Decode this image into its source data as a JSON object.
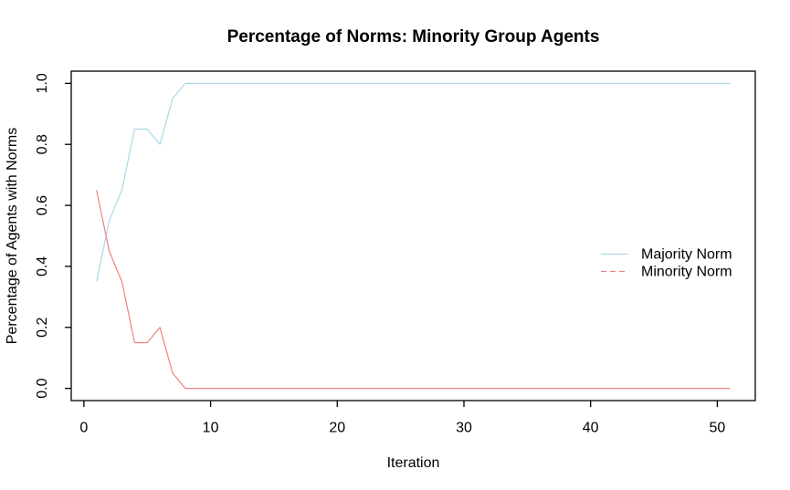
{
  "chart_data": {
    "type": "line",
    "title": "Percentage of Norms: Minority Group Agents",
    "xlabel": "Iteration",
    "ylabel": "Percentage of Agents with Norms",
    "grid": false,
    "legend_position": "right-middle",
    "xlim": [
      -1,
      53
    ],
    "ylim": [
      -0.04,
      1.04
    ],
    "xticks": [
      0,
      10,
      20,
      30,
      40,
      50
    ],
    "yticks": [
      0.0,
      0.2,
      0.4,
      0.6,
      0.8,
      1.0
    ],
    "ytick_labels": [
      "0.0",
      "0.2",
      "0.4",
      "0.6",
      "0.8",
      "1.0"
    ],
    "x": [
      1,
      2,
      3,
      4,
      5,
      6,
      7,
      8,
      9,
      10,
      11,
      12,
      13,
      14,
      15,
      16,
      17,
      18,
      19,
      20,
      21,
      22,
      23,
      24,
      25,
      26,
      27,
      28,
      29,
      30,
      31,
      32,
      33,
      34,
      35,
      36,
      37,
      38,
      39,
      40,
      41,
      42,
      43,
      44,
      45,
      46,
      47,
      48,
      49,
      50,
      51
    ],
    "series": [
      {
        "name": "Majority Norm",
        "color": "#ADD8E6",
        "line_style": "solid",
        "legend_style": "solid",
        "values": [
          0.35,
          0.55,
          0.65,
          0.85,
          0.85,
          0.8,
          0.95,
          1.0,
          1.0,
          1.0,
          1.0,
          1.0,
          1.0,
          1.0,
          1.0,
          1.0,
          1.0,
          1.0,
          1.0,
          1.0,
          1.0,
          1.0,
          1.0,
          1.0,
          1.0,
          1.0,
          1.0,
          1.0,
          1.0,
          1.0,
          1.0,
          1.0,
          1.0,
          1.0,
          1.0,
          1.0,
          1.0,
          1.0,
          1.0,
          1.0,
          1.0,
          1.0,
          1.0,
          1.0,
          1.0,
          1.0,
          1.0,
          1.0,
          1.0,
          1.0,
          1.0
        ]
      },
      {
        "name": "Minority Norm",
        "color": "#F08080",
        "line_style": "solid",
        "legend_style": "dashed",
        "values": [
          0.65,
          0.45,
          0.35,
          0.15,
          0.15,
          0.2,
          0.05,
          0.0,
          0.0,
          0.0,
          0.0,
          0.0,
          0.0,
          0.0,
          0.0,
          0.0,
          0.0,
          0.0,
          0.0,
          0.0,
          0.0,
          0.0,
          0.0,
          0.0,
          0.0,
          0.0,
          0.0,
          0.0,
          0.0,
          0.0,
          0.0,
          0.0,
          0.0,
          0.0,
          0.0,
          0.0,
          0.0,
          0.0,
          0.0,
          0.0,
          0.0,
          0.0,
          0.0,
          0.0,
          0.0,
          0.0,
          0.0,
          0.0,
          0.0,
          0.0,
          0.0
        ]
      }
    ]
  },
  "colors": {
    "axis": "#000000",
    "background": "#FFFFFF",
    "majority_line": "#ADD8E6",
    "minority_line": "#F08080"
  }
}
